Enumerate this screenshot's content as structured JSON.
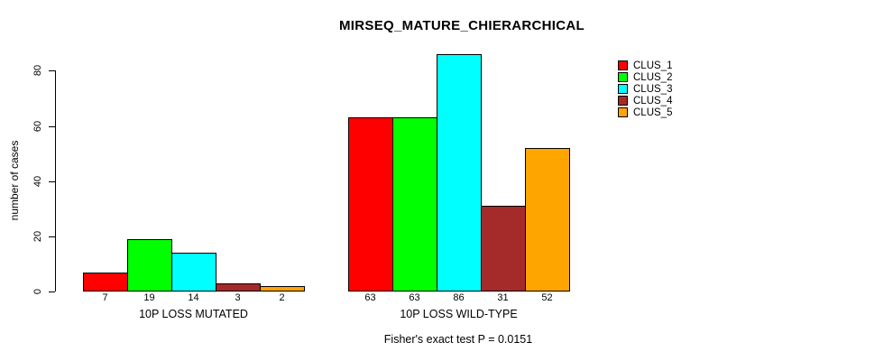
{
  "chart_data": {
    "type": "bar",
    "title": "MIRSEQ_MATURE_CHIERARCHICAL",
    "ylabel": "number of cases",
    "xlabel": "",
    "yticks": [
      0,
      20,
      40,
      60,
      80
    ],
    "ylim": [
      0,
      86
    ],
    "grid": false,
    "legend_position": "top-right",
    "bar_border_color": "#000000",
    "categories": [
      "10P LOSS MUTATED",
      "10P LOSS WILD-TYPE"
    ],
    "series": [
      {
        "name": "CLUS_1",
        "color": "#ff0000",
        "values": [
          7,
          63
        ]
      },
      {
        "name": "CLUS_2",
        "color": "#00ff00",
        "values": [
          19,
          63
        ]
      },
      {
        "name": "CLUS_3",
        "color": "#00ffff",
        "values": [
          14,
          86
        ]
      },
      {
        "name": "CLUS_4",
        "color": "#a52a2a",
        "values": [
          3,
          31
        ]
      },
      {
        "name": "CLUS_5",
        "color": "#ffa500",
        "values": [
          2,
          52
        ]
      }
    ],
    "bar_value_labels": [
      [
        "7",
        "19",
        "14",
        "3",
        "2"
      ],
      [
        "63",
        "63",
        "86",
        "31",
        "52"
      ]
    ],
    "caption": "Fisher's exact test P = 0.0151"
  }
}
